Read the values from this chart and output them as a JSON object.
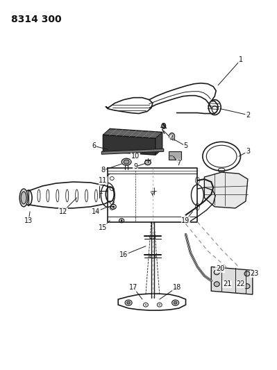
{
  "title": "8314 300",
  "bg_color": "#ffffff",
  "line_color": "#1a1a1a",
  "label_color": "#111111",
  "label_fontsize": 7,
  "figsize": [
    3.99,
    5.33
  ],
  "dpi": 100
}
